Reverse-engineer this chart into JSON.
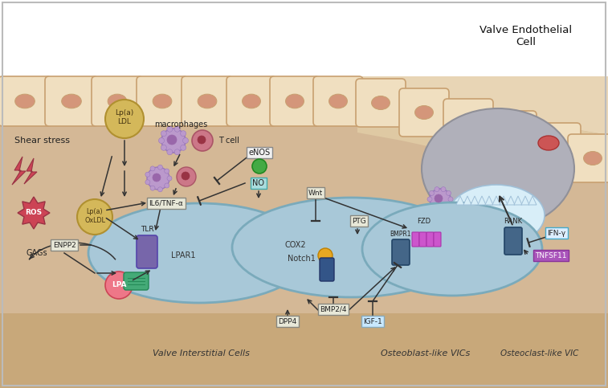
{
  "fig_width": 7.57,
  "fig_height": 4.83,
  "title": "Valve Endothelial\nCell",
  "labels": {
    "shear_stress": "Shear stress",
    "macrophages": "macrophages",
    "t_cell": "T cell",
    "valve_interstitial": "Valve Interstitial Cells",
    "osteoblast": "Osteoblast-like VICs",
    "osteoclast": "Osteoclast-like VIC",
    "gags": "GAGs"
  },
  "colors": {
    "white": "#ffffff",
    "tissue_tan": "#d4b896",
    "tissue_light": "#e8d5b5",
    "cell_face": "#f0dfc0",
    "cell_nucleus": "#d4967a",
    "cell_edge": "#c8a070",
    "vic_face": "#a8c8d8",
    "vic_edge": "#7aaabb",
    "gold": "#d4b85a",
    "gold_edge": "#b09030",
    "ros_red": "#cc4455",
    "lpa_pink": "#ee7788",
    "tlr_purple": "#8866aa",
    "green_receptor": "#44aa77",
    "notch_blue": "#335588",
    "orange_dot": "#e8a822",
    "bmpr_blue": "#446688",
    "gray_nucleus": "#b0b0b8",
    "osteoclast_white": "#d8eef8",
    "macro_purple": "#bb99cc",
    "tcell_red": "#cc7788",
    "enos_green": "#44aa44",
    "no_cyan": "#aadddd",
    "ifn_purple": "#cc88ee",
    "tnfsf_purple": "#aa55cc",
    "box_gray": "#e8e8d8",
    "dark_text": "#222222",
    "arrow_color": "#333333"
  }
}
